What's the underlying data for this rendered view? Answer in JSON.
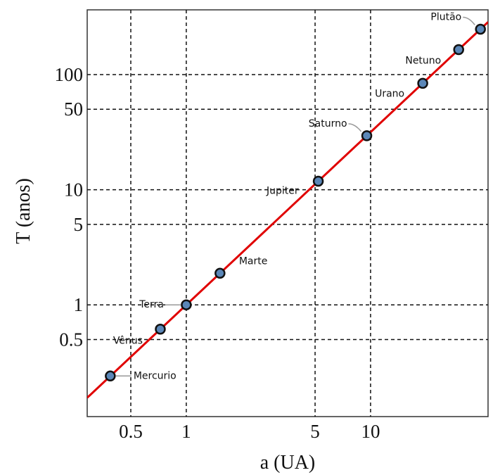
{
  "chart_data": {
    "type": "scatter",
    "x_label": "a (UA)",
    "y_label": "T (anos)",
    "log_x": true,
    "log_y": true,
    "grid": true,
    "xlim": [
      0.29,
      43.4
    ],
    "ylim": [
      0.107,
      365
    ],
    "xticks": [
      0.5,
      1,
      5,
      10
    ],
    "yticks": [
      0.5,
      1,
      5,
      10,
      50,
      100
    ],
    "labels": [
      "Mercurio",
      "Vênus",
      "Terra",
      "Marte",
      "Jupiter",
      "Saturno",
      "Urano",
      "Netuno",
      "Plutão"
    ],
    "x": [
      0.387,
      0.723,
      1,
      1.524,
      5.203,
      9.537,
      19.19,
      30.07,
      39.48
    ],
    "values": [
      0.241,
      0.615,
      1,
      1.881,
      11.86,
      29.45,
      84.02,
      164.8,
      248
    ],
    "color": "#5b87b8",
    "fit": {
      "x": [
        0.29,
        43.4
      ],
      "values": [
        0.156,
        286
      ],
      "color": "#e00000"
    }
  }
}
